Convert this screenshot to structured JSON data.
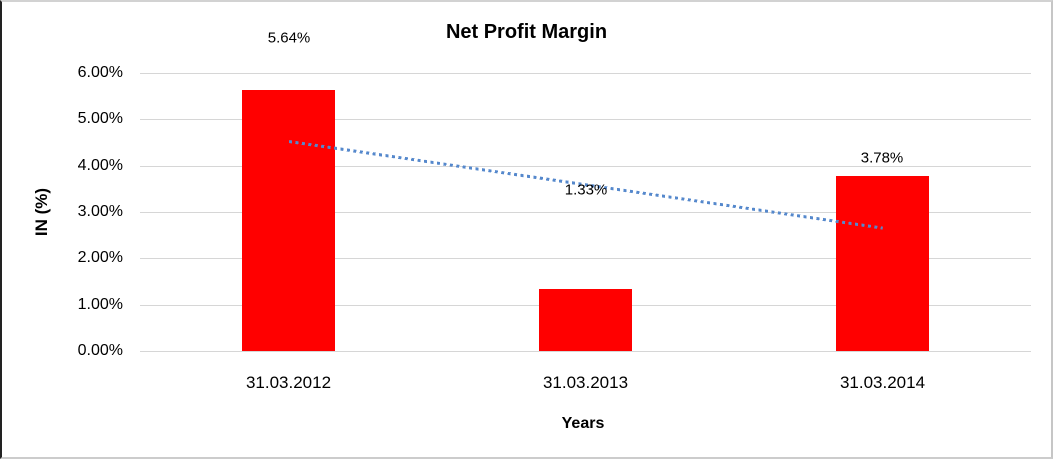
{
  "chart_data": {
    "type": "bar",
    "title": "Net Profit Margin",
    "categories": [
      "31.03.2012",
      "31.03.2013",
      "31.03.2014"
    ],
    "values": [
      5.64,
      1.33,
      3.78
    ],
    "data_labels": [
      "5.64%",
      "1.33%",
      "3.78%"
    ],
    "xlabel": "Years",
    "ylabel": "IN (%)",
    "ylim": [
      0,
      6
    ],
    "yticks": [
      "0.00%",
      "1.00%",
      "2.00%",
      "3.00%",
      "4.00%",
      "5.00%",
      "6.00%"
    ],
    "grid": true,
    "legend_position": "none",
    "bar_color": "#ff0000",
    "gridline_color": "#d6d6d6",
    "trendline": {
      "type": "linear",
      "style": "dotted",
      "color": "#5588cc",
      "start_value": 4.52,
      "end_value": 2.65
    }
  }
}
